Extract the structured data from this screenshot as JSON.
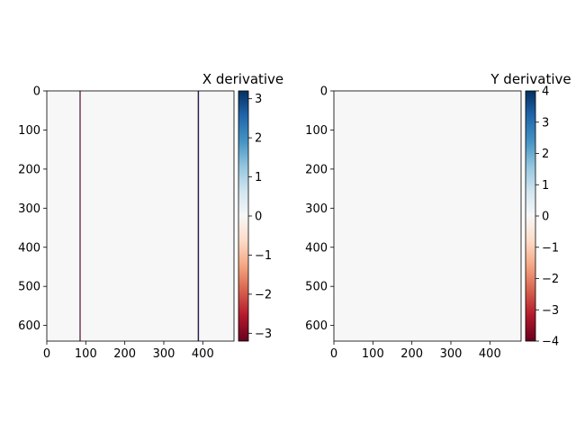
{
  "chart_data": [
    {
      "type": "heatmap",
      "title": "X derivative",
      "xlabel": "",
      "ylabel": "",
      "xlim": [
        0,
        480
      ],
      "ylim": [
        640,
        0
      ],
      "xticks": [
        0,
        100,
        200,
        300,
        400
      ],
      "yticks": [
        0,
        100,
        200,
        300,
        400,
        500,
        600
      ],
      "background_value": 0,
      "vertical_lines": [
        {
          "x": 85,
          "value": 3.2
        },
        {
          "x": 85.7,
          "value": -3.2
        },
        {
          "x": 388,
          "value": -3.2
        },
        {
          "x": 389.3,
          "value": 3.2
        }
      ],
      "colorbar": {
        "colormap": "RdBu",
        "range": [
          -3.2,
          3.2
        ],
        "ticks": [
          3,
          2,
          1,
          0,
          -1,
          -2,
          -3
        ],
        "tick_labels": [
          "3",
          "2",
          "1",
          "0",
          "−1",
          "−2",
          "−3"
        ]
      }
    },
    {
      "type": "heatmap",
      "title": "Y derivative",
      "xlabel": "",
      "ylabel": "",
      "xlim": [
        0,
        480
      ],
      "ylim": [
        640,
        0
      ],
      "xticks": [
        0,
        100,
        200,
        300,
        400
      ],
      "yticks": [
        0,
        100,
        200,
        300,
        400,
        500,
        600
      ],
      "background_value": 0,
      "vertical_lines": [],
      "colorbar": {
        "colormap": "RdBu",
        "range": [
          -4,
          4
        ],
        "ticks": [
          4,
          3,
          2,
          1,
          0,
          -1,
          -2,
          -3,
          -4
        ],
        "tick_labels": [
          "4",
          "3",
          "2",
          "1",
          "0",
          "−1",
          "−2",
          "−3",
          "−4"
        ]
      }
    }
  ]
}
